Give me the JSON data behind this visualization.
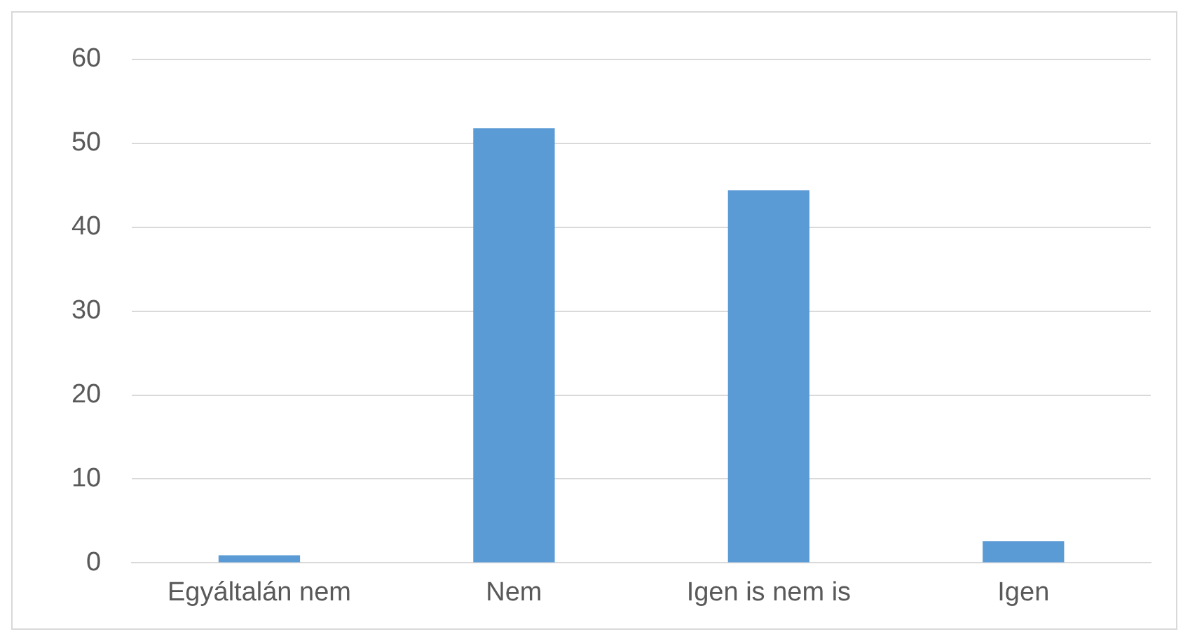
{
  "chart_data": {
    "type": "bar",
    "categories": [
      "Egyáltalán nem",
      "Nem",
      "Igen is nem is",
      "Igen"
    ],
    "values": [
      0.9,
      51.8,
      44.4,
      2.6
    ],
    "color": "#5b9bd5",
    "ylim": [
      0,
      60
    ],
    "yticks": [
      0,
      10,
      20,
      30,
      40,
      50,
      60
    ],
    "grid": "y"
  }
}
